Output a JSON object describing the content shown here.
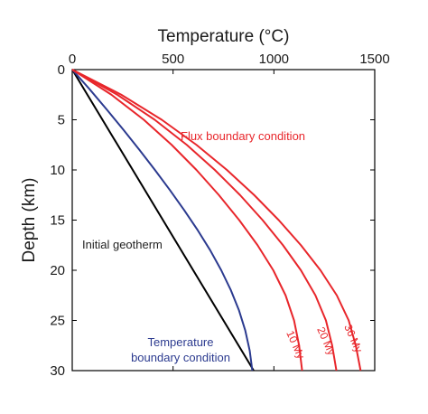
{
  "chart_data": {
    "type": "line",
    "xlabel": "Temperature (°C)",
    "ylabel": "Depth (km)",
    "xlim": [
      0,
      1500
    ],
    "ylim": [
      0,
      30
    ],
    "y_reversed": true,
    "x_axis_position": "top",
    "x_ticks": [
      0,
      500,
      1000,
      1500
    ],
    "y_ticks": [
      0,
      5,
      10,
      15,
      20,
      25,
      30
    ],
    "grid": false,
    "series": [
      {
        "name": "Initial geotherm",
        "color": "#000000",
        "points": [
          [
            0,
            0
          ],
          [
            900,
            30
          ]
        ]
      },
      {
        "name": "Temperature boundary condition",
        "color": "#2b3a8f",
        "points": [
          [
            0,
            0
          ],
          [
            88,
            2
          ],
          [
            172,
            4
          ],
          [
            254,
            6
          ],
          [
            333,
            8
          ],
          [
            410,
            10
          ],
          [
            484,
            12
          ],
          [
            555,
            14
          ],
          [
            622,
            16
          ],
          [
            684,
            18
          ],
          [
            739,
            20
          ],
          [
            787,
            22
          ],
          [
            827,
            24
          ],
          [
            858,
            26
          ],
          [
            880,
            28
          ],
          [
            893,
            30
          ]
        ]
      },
      {
        "name": "10 My",
        "color": "#e8262b",
        "points": [
          [
            0,
            0
          ],
          [
            194,
            2.5
          ],
          [
            355,
            5
          ],
          [
            493,
            7.5
          ],
          [
            616,
            10
          ],
          [
            727,
            12.5
          ],
          [
            828,
            15
          ],
          [
            919,
            17.5
          ],
          [
            997,
            20
          ],
          [
            1058,
            22.5
          ],
          [
            1100,
            25
          ],
          [
            1125,
            27.5
          ],
          [
            1140,
            30
          ]
        ]
      },
      {
        "name": "20 My",
        "color": "#e8262b",
        "points": [
          [
            0,
            0
          ],
          [
            223,
            2.5
          ],
          [
            409,
            5
          ],
          [
            568,
            7.5
          ],
          [
            707,
            10
          ],
          [
            832,
            12.5
          ],
          [
            944,
            15
          ],
          [
            1045,
            17.5
          ],
          [
            1134,
            20
          ],
          [
            1206,
            22.5
          ],
          [
            1258,
            25
          ],
          [
            1289,
            27.5
          ],
          [
            1310,
            30
          ]
        ]
      },
      {
        "name": "36 My",
        "color": "#e8262b",
        "points": [
          [
            0,
            0
          ],
          [
            243,
            2.5
          ],
          [
            444,
            5
          ],
          [
            616,
            7.5
          ],
          [
            767,
            10
          ],
          [
            902,
            12.5
          ],
          [
            1024,
            15
          ],
          [
            1134,
            17.5
          ],
          [
            1231,
            20
          ],
          [
            1312,
            22.5
          ],
          [
            1371,
            25
          ],
          [
            1406,
            27.5
          ],
          [
            1430,
            30
          ]
        ]
      }
    ],
    "annotations": [
      {
        "id": "flux",
        "text": "Flux boundary condition",
        "color": "#e8262b"
      },
      {
        "id": "initial",
        "text": "Initial geotherm",
        "color": "#222222"
      },
      {
        "id": "temp1",
        "text": "Temperature",
        "color": "#2b3a8f"
      },
      {
        "id": "temp2",
        "text": "boundary condition",
        "color": "#2b3a8f"
      },
      {
        "id": "my10",
        "text": "10 My",
        "color": "#e8262b"
      },
      {
        "id": "my20",
        "text": "20 My",
        "color": "#e8262b"
      },
      {
        "id": "my36",
        "text": "36 My",
        "color": "#e8262b"
      }
    ]
  }
}
